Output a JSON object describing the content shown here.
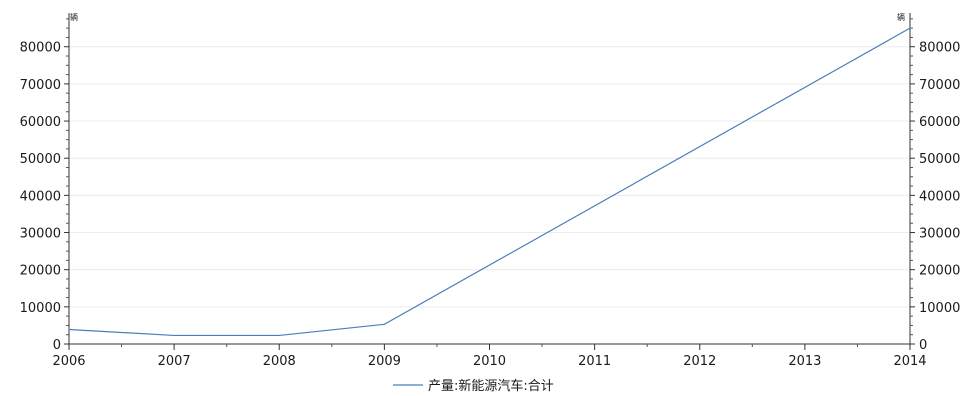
{
  "chart_data": {
    "type": "line",
    "x": [
      2006,
      2007,
      2008,
      2009,
      2014
    ],
    "x_ticks": [
      "2006",
      "2007",
      "2008",
      "2009",
      "2010",
      "2011",
      "2012",
      "2013",
      "2014"
    ],
    "xlim": [
      2006,
      2014
    ],
    "ylim": [
      0,
      88000
    ],
    "y_ticks": [
      0,
      10000,
      20000,
      30000,
      40000,
      50000,
      60000,
      70000,
      80000
    ],
    "y_unit_left": "辆",
    "y_unit_right": "辆",
    "grid": true,
    "legend_position": "bottom-center",
    "series": [
      {
        "name": "产量:新能源汽车:合计",
        "color": "#4a7ebb",
        "values": [
          3900,
          2300,
          2300,
          5300,
          85000
        ]
      }
    ]
  }
}
